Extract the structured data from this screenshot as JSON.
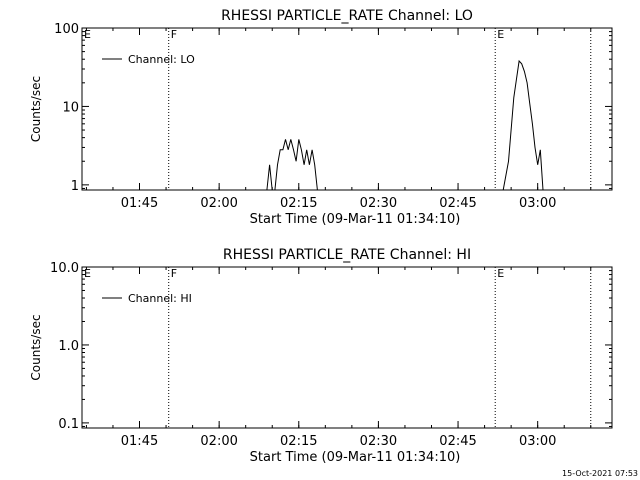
{
  "chart_data": [
    {
      "type": "line",
      "title": "RHESSI PARTICLE_RATE Channel: LO",
      "xlabel": "Start Time (09-Mar-11 01:34:10)",
      "ylabel": "Counts/sec",
      "yscale": "log",
      "xlim": [
        "01:34:10",
        "03:14:00"
      ],
      "ylim": [
        0.86,
        100
      ],
      "x_ticks": [
        "01:45",
        "02:00",
        "02:15",
        "02:30",
        "02:45",
        "03:00"
      ],
      "y_ticks": [
        "1",
        "10",
        "100"
      ],
      "legend": {
        "entries": [
          "Channel: LO"
        ],
        "placement": "top-left"
      },
      "markers": [
        {
          "label": "E",
          "time": "01:34:10",
          "style": "none"
        },
        {
          "label": "F",
          "time": "01:50:30",
          "style": "dotted"
        },
        {
          "label": "E",
          "time": "02:52:00",
          "style": "dotted"
        },
        {
          "label": "",
          "time": "03:10:00",
          "style": "dotted"
        }
      ],
      "series": [
        {
          "name": "Channel: LO",
          "x": [
            "02:09:00",
            "02:09:30",
            "02:10:00",
            "02:10:30",
            "02:11:00",
            "02:11:30",
            "02:12:00",
            "02:12:30",
            "02:13:00",
            "02:13:30",
            "02:14:00",
            "02:14:30",
            "02:15:00",
            "02:15:30",
            "02:16:00",
            "02:16:30",
            "02:17:00",
            "02:17:30",
            "02:18:00",
            "02:18:30",
            "02:19:00"
          ],
          "y": [
            0.86,
            1.8,
            0.86,
            0.86,
            1.8,
            2.8,
            2.8,
            3.8,
            2.8,
            3.8,
            2.8,
            2.0,
            3.8,
            2.8,
            1.8,
            2.8,
            1.8,
            2.8,
            1.8,
            0.86,
            0.86
          ],
          "segments": [
            {
              "x": [
                "02:53:30",
                "02:54:30",
                "02:55:00",
                "02:55:30",
                "02:56:00",
                "02:56:30",
                "02:57:00",
                "02:57:30",
                "02:58:00",
                "02:58:30",
                "02:59:00",
                "02:59:30",
                "03:00:00",
                "03:00:30",
                "03:01:00"
              ],
              "y": [
                0.86,
                2,
                5,
                13,
                22,
                38,
                35,
                28,
                20,
                11,
                6,
                3,
                1.8,
                2.8,
                0.86
              ]
            }
          ]
        }
      ]
    },
    {
      "type": "line",
      "title": "RHESSI PARTICLE_RATE Channel: HI",
      "xlabel": "Start Time (09-Mar-11 01:34:10)",
      "ylabel": "Counts/sec",
      "yscale": "log",
      "xlim": [
        "01:34:10",
        "03:14:00"
      ],
      "ylim": [
        0.086,
        10
      ],
      "x_ticks": [
        "01:45",
        "02:00",
        "02:15",
        "02:30",
        "02:45",
        "03:00"
      ],
      "y_ticks": [
        "0.1",
        "1.0",
        "10.0"
      ],
      "legend": {
        "entries": [
          "Channel: HI"
        ],
        "placement": "top-left"
      },
      "markers": [
        {
          "label": "E",
          "time": "01:34:10",
          "style": "none"
        },
        {
          "label": "F",
          "time": "01:50:30",
          "style": "dotted"
        },
        {
          "label": "E",
          "time": "02:52:00",
          "style": "dotted"
        },
        {
          "label": "",
          "time": "03:10:00",
          "style": "dotted"
        }
      ],
      "series": [
        {
          "name": "Channel: HI",
          "x": [],
          "y": []
        }
      ]
    }
  ],
  "footer": {
    "timestamp": "15-Oct-2021 07:53"
  }
}
